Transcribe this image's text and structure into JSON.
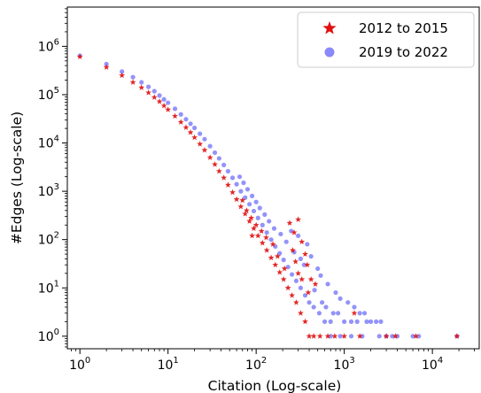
{
  "chart_data": {
    "type": "scatter",
    "xlabel": "Citation (Log-scale)",
    "ylabel": "#Edges (Log-scale)",
    "x_scale": "log",
    "y_scale": "log",
    "xlim": [
      0.72,
      34000
    ],
    "ylim": [
      0.55,
      6500000
    ],
    "x_ticks": [
      {
        "value": 1,
        "base": "10",
        "exp": "0"
      },
      {
        "value": 10,
        "base": "10",
        "exp": "1"
      },
      {
        "value": 100,
        "base": "10",
        "exp": "2"
      },
      {
        "value": 1000,
        "base": "10",
        "exp": "3"
      },
      {
        "value": 10000,
        "base": "10",
        "exp": "4"
      }
    ],
    "y_ticks": [
      {
        "value": 1,
        "base": "10",
        "exp": "0"
      },
      {
        "value": 10,
        "base": "10",
        "exp": "1"
      },
      {
        "value": 100,
        "base": "10",
        "exp": "2"
      },
      {
        "value": 1000,
        "base": "10",
        "exp": "3"
      },
      {
        "value": 10000,
        "base": "10",
        "exp": "4"
      },
      {
        "value": 100000,
        "base": "10",
        "exp": "5"
      },
      {
        "value": 1000000,
        "base": "10",
        "exp": "6"
      }
    ],
    "grid": false,
    "legend_position": "top-right",
    "series": [
      {
        "name": "2019 to 2022",
        "marker": "circle",
        "color": "#3b3bf5",
        "points": [
          [
            1,
            640000
          ],
          [
            2,
            430000
          ],
          [
            3,
            300000
          ],
          [
            4,
            230000
          ],
          [
            5,
            180000
          ],
          [
            6,
            145000
          ],
          [
            7,
            118000
          ],
          [
            8,
            96000
          ],
          [
            9,
            80000
          ],
          [
            10,
            68000
          ],
          [
            12,
            51000
          ],
          [
            14,
            39000
          ],
          [
            16,
            31000
          ],
          [
            18,
            25000
          ],
          [
            20,
            20500
          ],
          [
            23,
            15500
          ],
          [
            26,
            12000
          ],
          [
            30,
            8600
          ],
          [
            34,
            6300
          ],
          [
            38,
            4800
          ],
          [
            43,
            3500
          ],
          [
            48,
            2600
          ],
          [
            54,
            1900
          ],
          [
            60,
            1400
          ],
          [
            67,
            1000
          ],
          [
            75,
            740
          ],
          [
            84,
            540
          ],
          [
            94,
            390
          ],
          [
            105,
            280
          ],
          [
            118,
            200
          ],
          [
            132,
            140
          ],
          [
            148,
            100
          ],
          [
            165,
            72
          ],
          [
            185,
            52
          ],
          [
            205,
            38
          ],
          [
            230,
            27
          ],
          [
            255,
            19
          ],
          [
            285,
            14
          ],
          [
            320,
            10
          ],
          [
            360,
            7
          ],
          [
            400,
            5
          ],
          [
            450,
            4
          ],
          [
            520,
            3
          ],
          [
            600,
            2
          ],
          [
            700,
            2
          ],
          [
            380,
            80
          ],
          [
            300,
            120
          ],
          [
            250,
            150
          ],
          [
            420,
            45
          ],
          [
            500,
            25
          ],
          [
            650,
            12
          ],
          [
            800,
            8
          ],
          [
            900,
            6
          ],
          [
            1100,
            5
          ],
          [
            1300,
            4
          ],
          [
            1500,
            3
          ],
          [
            1700,
            3
          ],
          [
            2000,
            2
          ],
          [
            2300,
            2
          ],
          [
            2600,
            2
          ],
          [
            3000,
            1
          ],
          [
            3500,
            1
          ],
          [
            4000,
            1
          ],
          [
            700,
            1
          ],
          [
            900,
            1
          ],
          [
            1200,
            1
          ],
          [
            1600,
            1
          ],
          [
            2500,
            1
          ],
          [
            6000,
            1
          ],
          [
            7000,
            1
          ],
          [
            19000,
            1
          ],
          [
            460,
            9
          ],
          [
            560,
            5
          ],
          [
            620,
            4
          ],
          [
            750,
            3
          ],
          [
            850,
            3
          ],
          [
            1000,
            2
          ],
          [
            1200,
            2
          ],
          [
            1400,
            2
          ],
          [
            1800,
            2
          ],
          [
            540,
            18
          ],
          [
            350,
            30
          ],
          [
            270,
            55
          ],
          [
            320,
            40
          ],
          [
            220,
            90
          ],
          [
            190,
            130
          ],
          [
            160,
            170
          ],
          [
            140,
            240
          ],
          [
            125,
            330
          ],
          [
            110,
            450
          ],
          [
            100,
            600
          ],
          [
            90,
            800
          ],
          [
            80,
            1100
          ],
          [
            72,
            1500
          ],
          [
            65,
            2000
          ]
        ]
      },
      {
        "name": "2012 to 2015",
        "marker": "star",
        "color": "#e01010",
        "points": [
          [
            1,
            610000
          ],
          [
            2,
            370000
          ],
          [
            3,
            250000
          ],
          [
            4,
            180000
          ],
          [
            5,
            140000
          ],
          [
            6,
            110000
          ],
          [
            7,
            88000
          ],
          [
            8,
            72000
          ],
          [
            9,
            59000
          ],
          [
            10,
            49000
          ],
          [
            12,
            36000
          ],
          [
            14,
            27000
          ],
          [
            16,
            21000
          ],
          [
            18,
            16500
          ],
          [
            20,
            13000
          ],
          [
            23,
            9500
          ],
          [
            26,
            7100
          ],
          [
            30,
            5000
          ],
          [
            34,
            3600
          ],
          [
            38,
            2600
          ],
          [
            43,
            1900
          ],
          [
            48,
            1350
          ],
          [
            54,
            950
          ],
          [
            60,
            680
          ],
          [
            67,
            480
          ],
          [
            75,
            340
          ],
          [
            84,
            240
          ],
          [
            94,
            170
          ],
          [
            105,
            120
          ],
          [
            118,
            85
          ],
          [
            132,
            60
          ],
          [
            148,
            42
          ],
          [
            165,
            30
          ],
          [
            185,
            21
          ],
          [
            205,
            15
          ],
          [
            230,
            10
          ],
          [
            255,
            7
          ],
          [
            285,
            5
          ],
          [
            320,
            3
          ],
          [
            360,
            2
          ],
          [
            400,
            1
          ],
          [
            450,
            1
          ],
          [
            530,
            1
          ],
          [
            650,
            1
          ],
          [
            780,
            1
          ],
          [
            1000,
            1
          ],
          [
            1500,
            1
          ],
          [
            3000,
            1
          ],
          [
            3800,
            1
          ],
          [
            6500,
            1
          ],
          [
            19000,
            1
          ],
          [
            240,
            220
          ],
          [
            300,
            260
          ],
          [
            270,
            140
          ],
          [
            330,
            90
          ],
          [
            360,
            50
          ],
          [
            380,
            30
          ],
          [
            420,
            15
          ],
          [
            470,
            12
          ],
          [
            390,
            8
          ],
          [
            330,
            15
          ],
          [
            300,
            20
          ],
          [
            280,
            35
          ],
          [
            260,
            60
          ],
          [
            210,
            25
          ],
          [
            175,
            45
          ],
          [
            155,
            80
          ],
          [
            130,
            110
          ],
          [
            115,
            150
          ],
          [
            100,
            200
          ],
          [
            88,
            280
          ],
          [
            78,
            400
          ],
          [
            1300,
            3
          ],
          [
            90,
            120
          ],
          [
            70,
            650
          ]
        ]
      }
    ]
  }
}
